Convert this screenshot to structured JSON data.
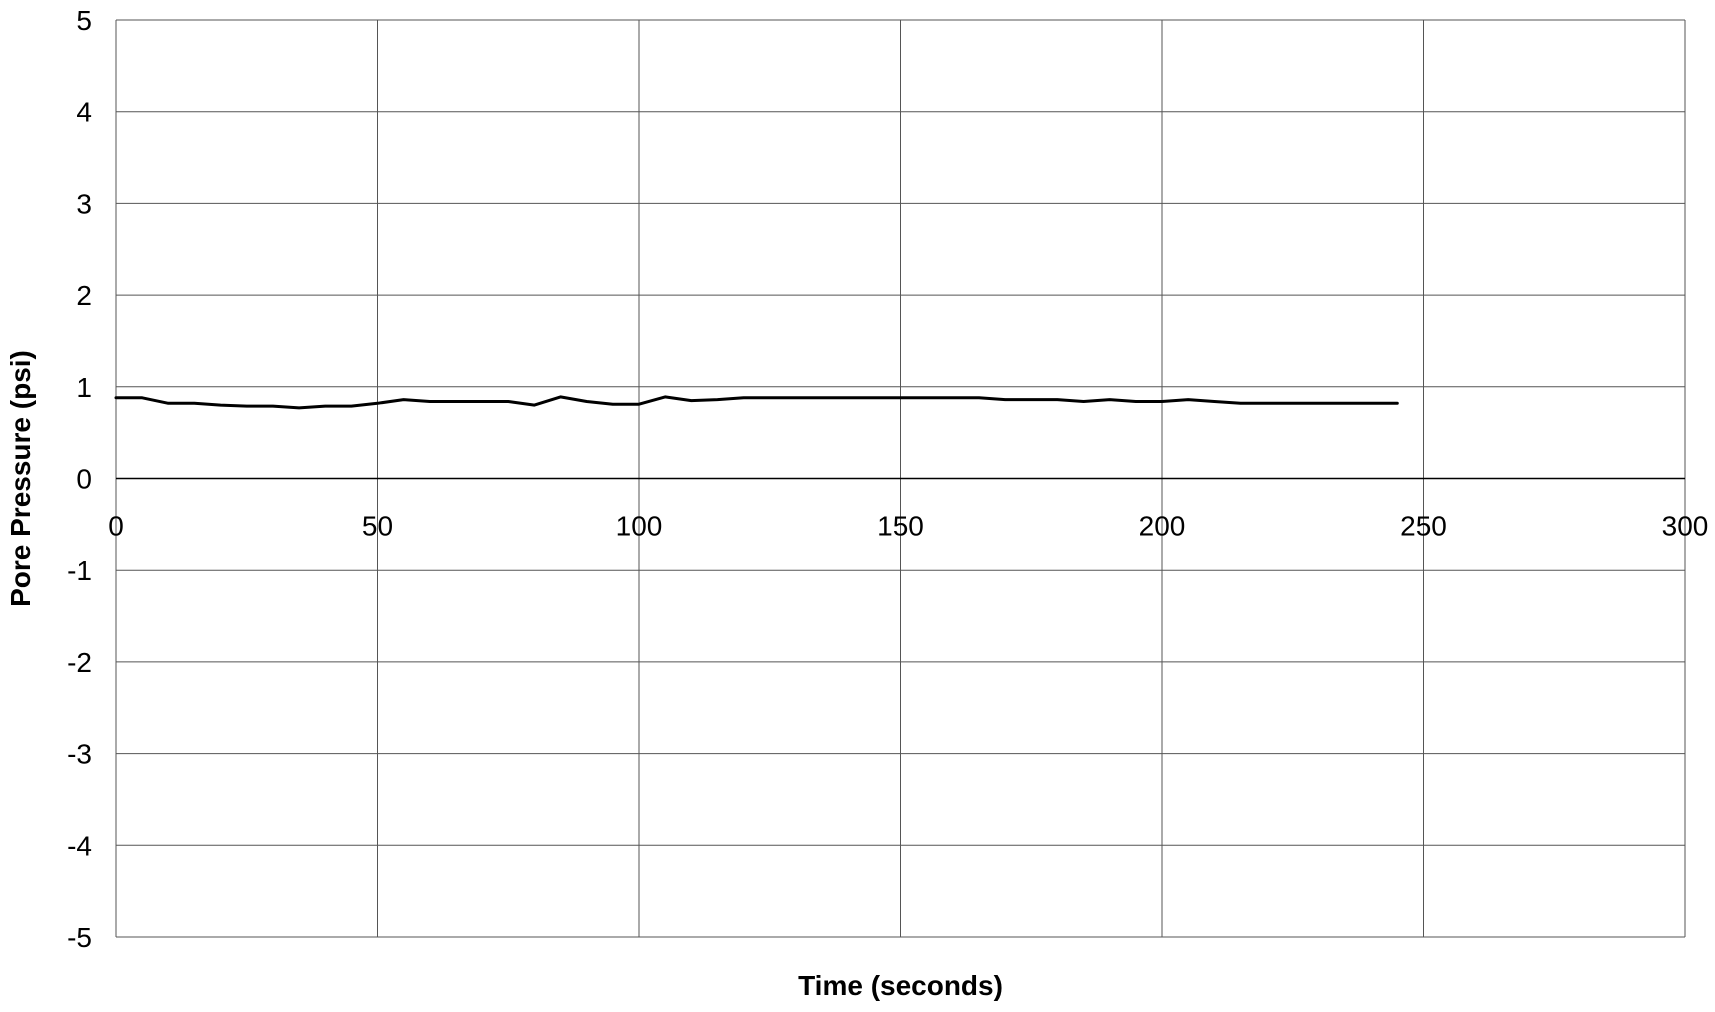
{
  "chart_data": {
    "type": "line",
    "title": "",
    "xlabel": "Time (seconds)",
    "ylabel": "Pore Pressure (psi)",
    "xlim": [
      0,
      300
    ],
    "ylim": [
      -5,
      5
    ],
    "x_ticks": [
      "0",
      "50",
      "100",
      "150",
      "200",
      "250",
      "300"
    ],
    "y_ticks": [
      "5",
      "4",
      "3",
      "2",
      "1",
      "0",
      "-1",
      "-2",
      "-3",
      "-4",
      "-5"
    ],
    "x_tick_values": [
      0,
      50,
      100,
      150,
      200,
      250,
      300
    ],
    "y_tick_values": [
      5,
      4,
      3,
      2,
      1,
      0,
      -1,
      -2,
      -3,
      -4,
      -5
    ],
    "grid": true,
    "legend": "none",
    "series": [
      {
        "color": "#000000",
        "x": [
          0,
          5,
          10,
          15,
          20,
          25,
          30,
          35,
          40,
          45,
          50,
          55,
          60,
          65,
          70,
          75,
          80,
          85,
          90,
          95,
          100,
          105,
          110,
          115,
          120,
          125,
          130,
          135,
          140,
          145,
          150,
          155,
          160,
          165,
          170,
          175,
          180,
          185,
          190,
          195,
          200,
          205,
          210,
          215,
          220,
          225,
          230,
          235,
          240,
          245
        ],
        "y": [
          0.88,
          0.88,
          0.82,
          0.82,
          0.8,
          0.79,
          0.79,
          0.77,
          0.79,
          0.79,
          0.82,
          0.86,
          0.84,
          0.84,
          0.84,
          0.84,
          0.8,
          0.89,
          0.84,
          0.81,
          0.81,
          0.89,
          0.85,
          0.86,
          0.88,
          0.88,
          0.88,
          0.88,
          0.88,
          0.88,
          0.88,
          0.88,
          0.88,
          0.88,
          0.86,
          0.86,
          0.86,
          0.84,
          0.86,
          0.84,
          0.84,
          0.86,
          0.84,
          0.82,
          0.82,
          0.82,
          0.82,
          0.82,
          0.82,
          0.82
        ]
      }
    ]
  }
}
